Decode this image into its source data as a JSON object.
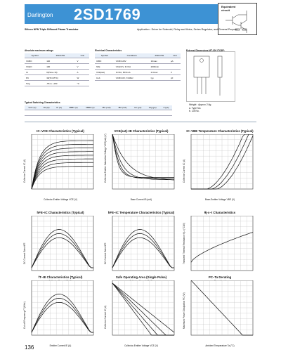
{
  "header": {
    "subtitle": "Darlington",
    "part_number": "2SD1769"
  },
  "equivalent_circuit": {
    "label_line1": "Equivalent",
    "label_line2": "circuit"
  },
  "description": {
    "type": "Silicon NPN Triple Diffused Planar Transistor",
    "application": "Application : Driver for Solenoid, Relay and Motor, Series Regulator, and General Purpose"
  },
  "abs_max": {
    "section_title": "Absolute maximum ratings",
    "headers": [
      "Symbol",
      "2SD1769",
      "Unit"
    ],
    "rows": [
      [
        "VCBO",
        "120",
        "V"
      ],
      [
        "VCEO",
        "100",
        "V"
      ],
      [
        "IC",
        "6(Pulse 10)",
        "A"
      ],
      [
        "PC",
        "30(Tc=25°C)",
        "W"
      ],
      [
        "Tstg",
        "-55 to +150",
        "°C"
      ]
    ]
  },
  "elec_char": {
    "section_title": "Electrical Characteristics",
    "headers": [
      "Symbol",
      "Conditions",
      "2SD1769",
      "Unit"
    ],
    "rows": [
      [
        "ICBO",
        "VCB=120V",
        "10max",
        "μA"
      ],
      [
        "hFE",
        "VCE=4V, IC=3A",
        "2000min",
        ""
      ],
      [
        "VCE(sat)",
        "IC=3A, IB=3mA",
        "2.0max",
        "V"
      ],
      [
        "Cob",
        "VCB=10V, f=1MHz",
        "typ",
        "pF"
      ]
    ]
  },
  "switching": {
    "section_title": "Typical Switching Characteristics",
    "headers": [
      "VCC (V)",
      "RL (Ω)",
      "IC (A)",
      "VBB1 (V)",
      "VBB2 (V)",
      "IB1 (mA)",
      "IB2 (mA)",
      "ton (μs)",
      "tstg (μs)",
      "tf (μs)"
    ]
  },
  "package": {
    "section_title": "External Dimensions MT-100 (TO3P)",
    "weight": "Weight : Approx 2.6g",
    "type_no": "a. Type No.",
    "lot_no": "b. Lot No."
  },
  "charts": [
    {
      "title": "IC–VCE Characteristics (Typical)",
      "xlabel": "Collector-Emitter Voltage VCE (V)",
      "ylabel": "Collector Current IC (A)",
      "curves": 8,
      "kind": "family_rise"
    },
    {
      "title": "VCE(sat)–IB Characteristics (Typical)",
      "xlabel": "Base Current IB (mA)",
      "ylabel": "Collector-Emitter Saturation Voltage VCE(sat) (V)",
      "curves": 4,
      "kind": "saturation"
    },
    {
      "title": "IC–VBE Temperature Characteristics (Typical)",
      "xlabel": "Base-Emitter Voltage VBE (V)",
      "ylabel": "Collector Current IC (A)",
      "curves": 3,
      "kind": "exp_rise"
    },
    {
      "title": "hFE–IC Characteristics (Typical)",
      "xlabel": "Collector Current IC (A)",
      "ylabel": "DC Current Gain hFE",
      "curves": 3,
      "kind": "hump"
    },
    {
      "title": "hFE–IC Temperature Characteristics (Typical)",
      "xlabel": "Collector Current IC (A)",
      "ylabel": "DC Current Gain hFE",
      "curves": 3,
      "kind": "hump"
    },
    {
      "title": "θj-c–t Characteristics",
      "xlabel": "Time t (ms)",
      "ylabel": "Transient Thermal Resistance θj-c (°C/W)",
      "curves": 1,
      "kind": "thermal"
    },
    {
      "title": "fT–IE Characteristics (Typical)",
      "xlabel": "Emitter Current IE (A)",
      "ylabel": "Cut-off Frequency fT (MHz)",
      "curves": 3,
      "kind": "hump"
    },
    {
      "title": "Safe Operating Area (Single Pulse)",
      "xlabel": "Collector-Emitter Voltage VCE (V)",
      "ylabel": "Collector Current IC (A)",
      "curves": 4,
      "kind": "soa"
    },
    {
      "title": "PC–Ta Derating",
      "xlabel": "Ambient Temperature Ta (°C)",
      "ylabel": "Maximum Power Dissipation PC (W)",
      "curves": 1,
      "kind": "derate"
    }
  ],
  "page_number": "136"
}
